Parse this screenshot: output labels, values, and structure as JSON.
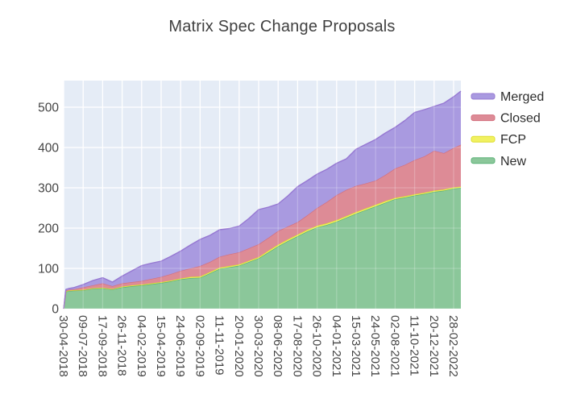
{
  "title": "Matrix Spec Change Proposals",
  "colors": {
    "figure_bg": "#ffffff",
    "plot_bg": "#e5ecf6",
    "grid": "#ffffff",
    "grid_overlay": "rgba(255,255,255,0.22)",
    "title_text": "#3f3f3f",
    "tick_text": "#444444",
    "legend_text": "#2d2d2d"
  },
  "chart_data": {
    "type": "area",
    "stacked": true,
    "title": "Matrix Spec Change Proposals",
    "xlabel": "",
    "ylabel": "",
    "grid": true,
    "legend_position": "right",
    "legend_order": [
      "Merged",
      "Closed",
      "FCP",
      "New"
    ],
    "y_ticks": [
      0,
      100,
      200,
      300,
      400,
      500
    ],
    "y_range": [
      0,
      566
    ],
    "x_tick_interval_days": 70,
    "x_range_days": [
      0,
      1426
    ],
    "x_tick_labels": [
      "30-04-2018",
      "09-07-2018",
      "17-09-2018",
      "26-11-2018",
      "04-02-2019",
      "15-04-2019",
      "24-06-2019",
      "02-09-2019",
      "11-11-2019",
      "20-01-2020",
      "30-03-2020",
      "08-06-2020",
      "17-08-2020",
      "26-10-2020",
      "04-01-2021",
      "15-03-2021",
      "24-05-2021",
      "02-08-2021",
      "11-10-2021",
      "20-12-2021",
      "28-02-2022"
    ],
    "x_days": [
      0,
      8,
      18,
      35,
      70,
      105,
      140,
      175,
      210,
      245,
      280,
      315,
      350,
      385,
      420,
      455,
      490,
      525,
      560,
      595,
      630,
      665,
      700,
      735,
      770,
      805,
      840,
      875,
      910,
      945,
      980,
      1015,
      1050,
      1085,
      1120,
      1155,
      1190,
      1225,
      1260,
      1295,
      1330,
      1365,
      1400,
      1426
    ],
    "values_are": "per-series counts, stacked bottom-to-top",
    "series": [
      {
        "name": "New",
        "fill": "#8bc79a",
        "line": "#5bb277",
        "values": [
          0,
          42,
          44,
          45,
          46,
          50,
          51,
          48,
          53,
          56,
          58,
          61,
          64,
          68,
          73,
          76,
          77,
          88,
          99,
          103,
          107,
          116,
          125,
          140,
          155,
          168,
          180,
          192,
          202,
          208,
          216,
          226,
          236,
          245,
          254,
          263,
          272,
          276,
          281,
          285,
          290,
          293,
          298,
          300
        ]
      },
      {
        "name": "FCP",
        "fill": "#f1f160",
        "line": "#dede2f",
        "values": [
          0,
          1,
          1,
          1,
          1,
          1,
          1,
          1,
          2,
          2,
          2,
          2,
          2,
          2,
          2,
          3,
          3,
          3,
          3,
          3,
          3,
          3,
          3,
          4,
          4,
          4,
          4,
          4,
          4,
          4,
          4,
          4,
          4,
          4,
          4,
          4,
          3,
          3,
          3,
          3,
          3,
          3,
          3,
          3
        ]
      },
      {
        "name": "Closed",
        "fill": "#dd8b96",
        "line": "#d4707f",
        "values": [
          0,
          2,
          2,
          2,
          6,
          7,
          11,
          7,
          8,
          8,
          9,
          11,
          13,
          16,
          19,
          21,
          26,
          25,
          27,
          29,
          30,
          31,
          32,
          32,
          34,
          32,
          31,
          36,
          44,
          53,
          62,
          65,
          65,
          62,
          60,
          65,
          73,
          78,
          85,
          90,
          99,
          90,
          98,
          104
        ]
      },
      {
        "name": "Merged",
        "fill": "#a99ae0",
        "line": "#9678d2",
        "values": [
          0,
          3,
          3,
          4,
          7,
          12,
          14,
          10,
          18,
          28,
          38,
          39,
          39,
          44,
          49,
          58,
          66,
          66,
          67,
          64,
          65,
          74,
          86,
          76,
          67,
          76,
          88,
          86,
          84,
          81,
          79,
          77,
          91,
          97,
          102,
          104,
          102,
          110,
          118,
          116,
          110,
          124,
          127,
          133
        ]
      }
    ]
  }
}
